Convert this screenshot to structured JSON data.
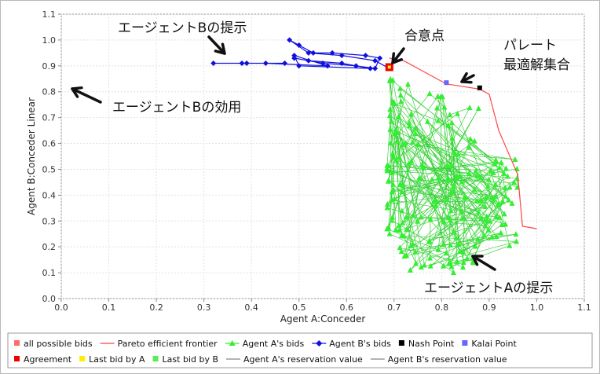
{
  "chart_data": {
    "type": "scatter",
    "xlabel": "Agent A:Conceder",
    "ylabel": "Agent B:Conceder Linear",
    "xlim": [
      0.0,
      1.1
    ],
    "ylim": [
      0.0,
      1.1
    ],
    "x_ticks": [
      "0.0",
      "0.1",
      "0.2",
      "0.3",
      "0.4",
      "0.5",
      "0.6",
      "0.7",
      "0.8",
      "0.9",
      "1.0",
      "1.1"
    ],
    "y_ticks": [
      "0.0",
      "0.1",
      "0.2",
      "0.3",
      "0.4",
      "0.5",
      "0.6",
      "0.7",
      "0.8",
      "0.9",
      "1.0",
      "1.1"
    ],
    "grid": true,
    "legend_position": "bottom",
    "colors": {
      "all_possible_bids": "#ff6b6b",
      "pareto": "#ff4444",
      "agent_a": "#33ee33",
      "agent_a_line": "#22cc22",
      "agent_b": "#1010dd",
      "nash": "#000000",
      "kalai": "#6666ff",
      "agreement": "#ee0000",
      "last_a": "#ffee00",
      "last_b": "#55ee55",
      "reservation": "#888888"
    },
    "series": [
      {
        "name": "Pareto efficient frontier",
        "x": [
          0.69,
          0.72,
          0.81,
          0.88,
          0.9,
          0.92,
          0.96,
          0.97,
          1.0
        ],
        "y": [
          0.93,
          0.92,
          0.83,
          0.81,
          0.79,
          0.65,
          0.48,
          0.28,
          0.27
        ]
      },
      {
        "name": "Agent B's bids",
        "x": [
          0.69,
          0.66,
          0.59,
          0.52,
          0.48,
          0.5,
          0.53,
          0.57,
          0.64,
          0.67,
          0.66,
          0.62,
          0.55,
          0.49,
          0.52,
          0.59,
          0.65,
          0.5,
          0.49,
          0.56,
          0.43,
          0.38,
          0.32,
          0.39,
          0.47
        ],
        "y": [
          0.89,
          0.92,
          0.94,
          0.95,
          1.0,
          0.98,
          0.95,
          0.95,
          0.94,
          0.93,
          0.89,
          0.9,
          0.91,
          0.93,
          0.92,
          0.91,
          0.89,
          0.9,
          0.94,
          0.9,
          0.91,
          0.91,
          0.91,
          0.91,
          0.91
        ]
      },
      {
        "name": "Agent A's bids",
        "seed": 7,
        "count": 220,
        "x_range": [
          0.685,
          0.96
        ],
        "y_range": [
          0.1,
          0.86
        ],
        "description": "dense cloud of concession bids"
      },
      {
        "name": "Nash Point",
        "x": [
          0.88
        ],
        "y": [
          0.815
        ]
      },
      {
        "name": "Kalai Point",
        "x": [
          0.81
        ],
        "y": [
          0.835
        ]
      },
      {
        "name": "Agreement",
        "x": [
          0.69
        ],
        "y": [
          0.895
        ]
      }
    ],
    "legend": [
      {
        "label": "all possible bids",
        "kind": "square",
        "color": "#ff6b6b"
      },
      {
        "label": "Pareto efficient frontier",
        "kind": "line",
        "color": "#ff4444"
      },
      {
        "label": "Agent A's bids",
        "kind": "triangle-line",
        "color": "#33ee33"
      },
      {
        "label": "Agent B's bids",
        "kind": "diamond-line",
        "color": "#1010dd"
      },
      {
        "label": "Nash Point",
        "kind": "square",
        "color": "#000000"
      },
      {
        "label": "Kalai Point",
        "kind": "square",
        "color": "#6666ff"
      },
      {
        "label": "Agreement",
        "kind": "square",
        "color": "#ee0000"
      },
      {
        "label": "Last bid by A",
        "kind": "square",
        "color": "#ffee00"
      },
      {
        "label": "Last bid by B",
        "kind": "square",
        "color": "#55ee55"
      },
      {
        "label": "Agent A's reservation value",
        "kind": "line",
        "color": "#888888"
      },
      {
        "label": "Agent B's reservation value",
        "kind": "line",
        "color": "#888888"
      }
    ],
    "annotations": [
      {
        "id": "agent-b-offers",
        "text": "エージェントBの提示"
      },
      {
        "id": "agreement-point",
        "text": "合意点"
      },
      {
        "id": "pareto-line1",
        "text": "パレート"
      },
      {
        "id": "pareto-line2",
        "text": "最適解集合"
      },
      {
        "id": "agent-b-utility",
        "text": "エージェントBの効用"
      },
      {
        "id": "agent-a-offers",
        "text": "エージェントAの提示"
      }
    ]
  }
}
